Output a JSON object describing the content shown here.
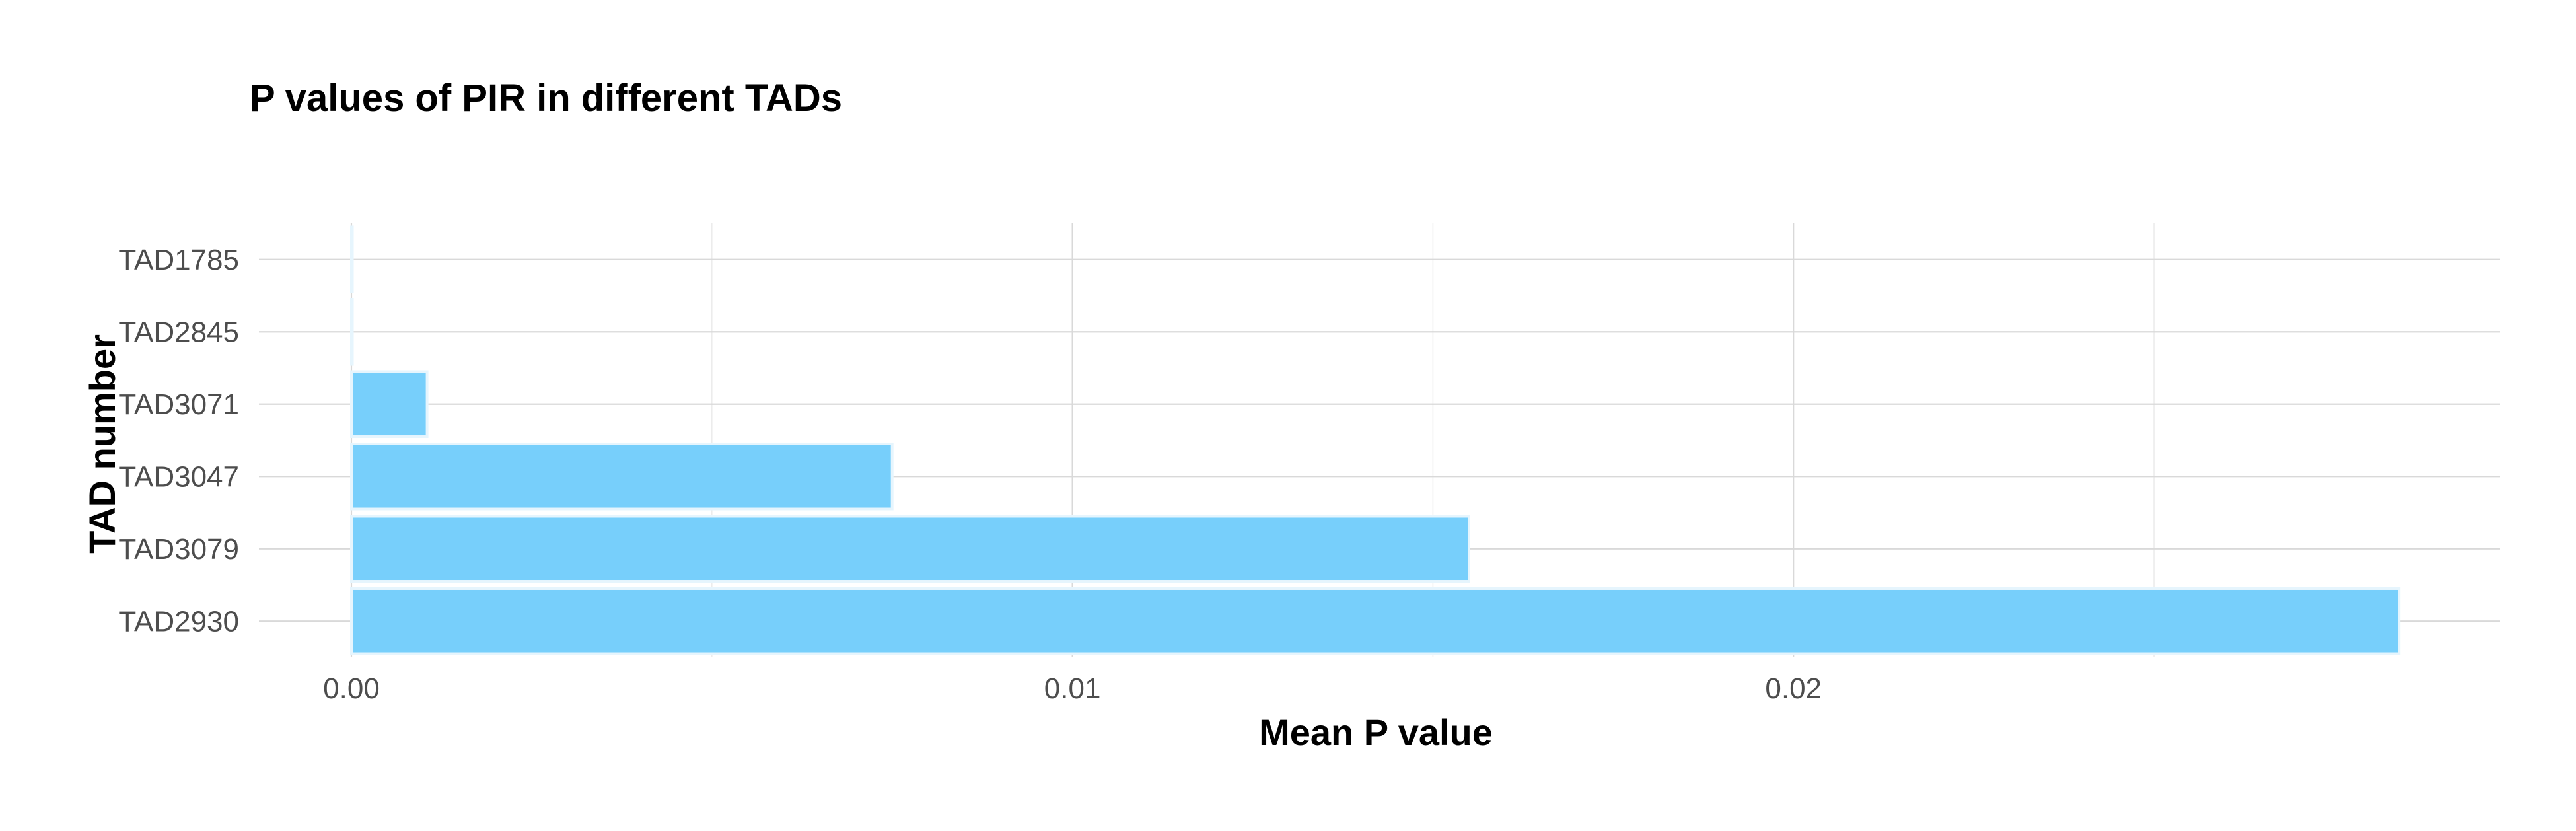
{
  "chart_data": {
    "type": "bar",
    "orientation": "horizontal",
    "title": "P values of PIR in different TADs",
    "xlabel": "Mean P value",
    "ylabel": "TAD number",
    "categories": [
      "TAD1785",
      "TAD2845",
      "TAD3071",
      "TAD3047",
      "TAD3079",
      "TAD2930"
    ],
    "values": [
      1e-05,
      1e-05,
      0.00105,
      0.0075,
      0.0155,
      0.0284
    ],
    "xlim": [
      0,
      0.0298
    ],
    "xticks": [
      0.0,
      0.01,
      0.02
    ],
    "xtick_labels": [
      "0.00",
      "0.01",
      "0.02"
    ],
    "xminor_ticks": [
      0.005,
      0.015,
      0.025
    ],
    "grid": true,
    "legend": "none",
    "colors": {
      "bar_fill": "#74cefb",
      "bar_stroke": "#e6f5fd",
      "grid_major": "#d9d9d9",
      "grid_minor": "#ececec"
    }
  }
}
